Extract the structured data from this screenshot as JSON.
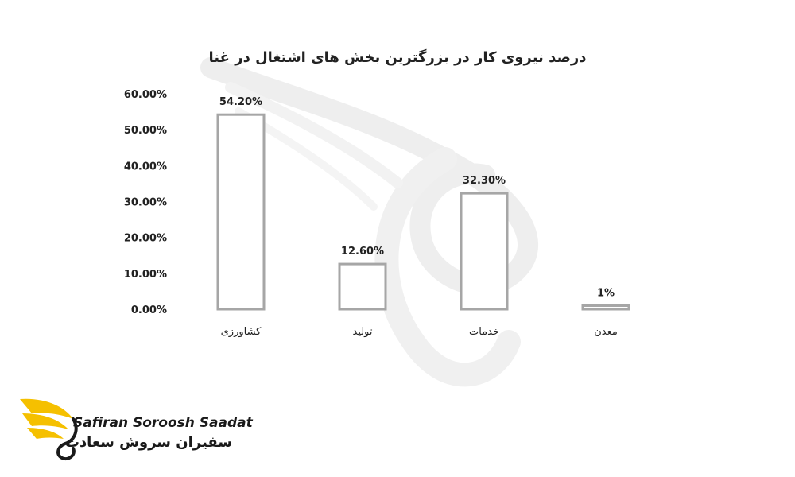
{
  "chart_data": {
    "type": "bar",
    "title": "درصد نیروی کار در بزرگترین بخش های اشتغال در غنا",
    "categories": [
      "کشاورزی",
      "تولید",
      "خدمات",
      "معدن"
    ],
    "values": [
      54.2,
      12.6,
      32.3,
      1
    ],
    "data_labels": [
      "54.20%",
      "12.60%",
      "32.30%",
      "1%"
    ],
    "y_ticks": [
      "0.00%",
      "10.00%",
      "20.00%",
      "30.00%",
      "40.00%",
      "50.00%",
      "60.00%"
    ],
    "ylim": [
      0,
      60
    ],
    "grid": false,
    "legend": "none",
    "xlabel": "",
    "ylabel": "",
    "colors": {
      "bar_fill": "#ffffff",
      "bar_stroke": "#a6a6a6",
      "text": "#222222"
    }
  },
  "brand": {
    "name_en": "Safiran Soroosh Saadat",
    "name_fa": "سفیران سروش سعادت",
    "colors": {
      "wing": "#f5c000",
      "text": "#1a1a1a"
    }
  }
}
